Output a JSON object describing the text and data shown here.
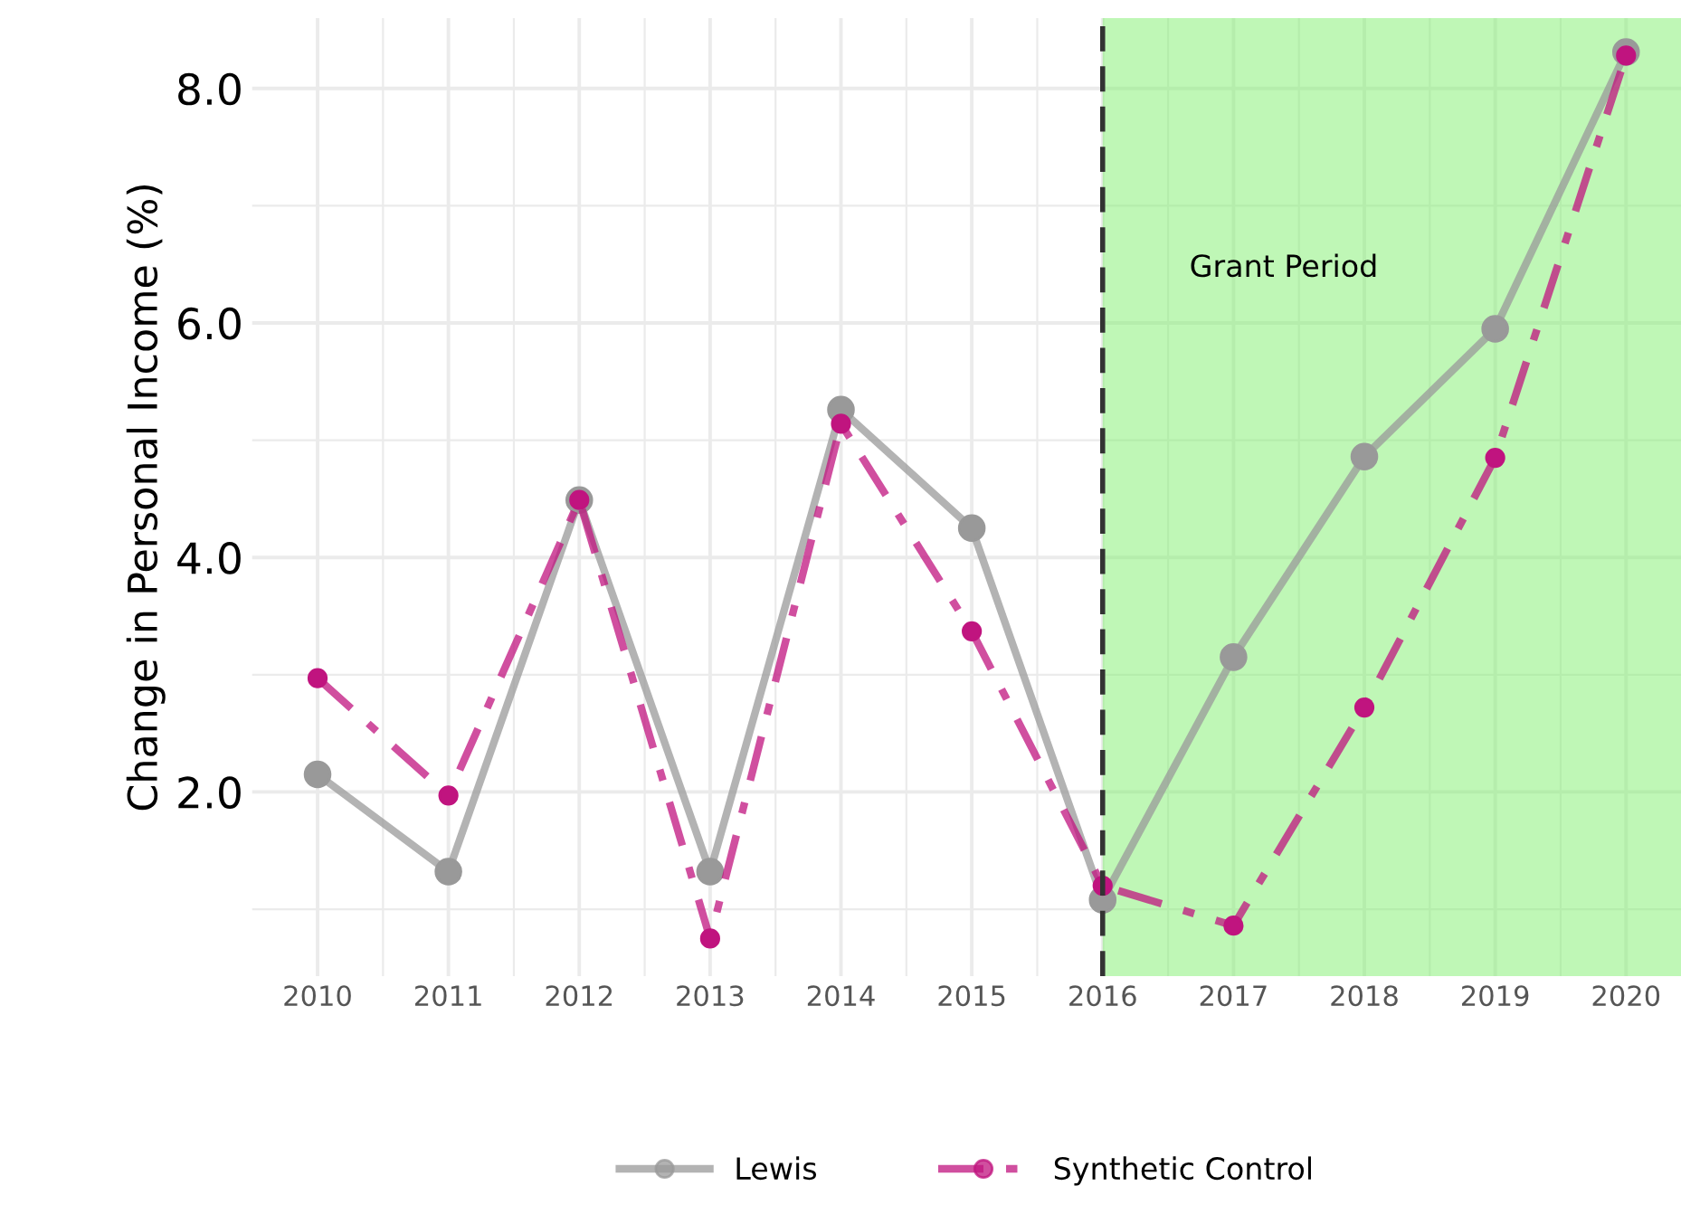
{
  "chart_data": {
    "type": "line",
    "ylabel": "Change in Personal Income (%)",
    "x": [
      2010,
      2011,
      2012,
      2013,
      2014,
      2015,
      2016,
      2017,
      2018,
      2019,
      2020
    ],
    "series": [
      {
        "name": "Lewis",
        "color": "#999999",
        "line_style": "solid",
        "values": [
          2.15,
          1.32,
          4.49,
          1.32,
          5.26,
          4.25,
          1.08,
          3.15,
          4.86,
          5.95,
          8.31
        ]
      },
      {
        "name": "Synthetic Control",
        "color": "#c0147f",
        "line_style": "dashdot",
        "values": [
          2.97,
          1.97,
          4.49,
          0.75,
          5.14,
          3.37,
          1.2,
          0.86,
          2.72,
          4.85,
          8.28
        ]
      }
    ],
    "xlim": [
      2009.5,
      2020.42
    ],
    "xticks": [
      2010,
      2011,
      2012,
      2013,
      2014,
      2015,
      2016,
      2017,
      2018,
      2019,
      2020
    ],
    "ylim": [
      0.43,
      8.6
    ],
    "yticks": [
      {
        "value": 2,
        "label": "2.0"
      },
      {
        "value": 4,
        "label": "4.0"
      },
      {
        "value": 6,
        "label": "6.0"
      },
      {
        "value": 8,
        "label": "8.0"
      }
    ],
    "ref_lines": [
      {
        "axis": "x",
        "value": 2016,
        "color": "#333333",
        "line_style": "dashed"
      }
    ],
    "bands": [
      {
        "axis": "x",
        "from": 2016,
        "to": 2020.42,
        "label": "Grant Period",
        "color": "#7ff06e"
      }
    ],
    "marker": "circle",
    "grid": true,
    "legend": "bottom"
  }
}
